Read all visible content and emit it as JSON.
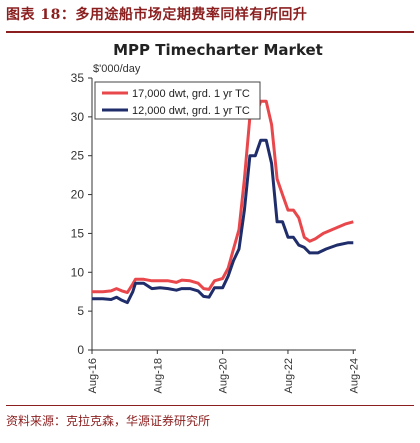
{
  "header": {
    "figure_title": "图表 18：多用途船市场定期费率同样有所回升"
  },
  "footer": {
    "source": "资料来源：克拉克森，华源证券研究所"
  },
  "colors": {
    "series_17000": "#e8474b",
    "series_12000": "#1f2d6b",
    "brand": "#8b1f1f"
  },
  "chart_data": {
    "type": "line",
    "title": "MPP Timecharter Market",
    "ylabel": "$'000/day",
    "xlabel": "",
    "ylim": [
      0,
      35
    ],
    "yticks": [
      0,
      5,
      10,
      15,
      20,
      25,
      30,
      35
    ],
    "xlim": [
      "2016-08",
      "2024-09"
    ],
    "xticks": [
      "Aug-16",
      "Aug-18",
      "Aug-20",
      "Aug-22",
      "Aug-24"
    ],
    "grid": false,
    "legend_position": "top-left",
    "series": [
      {
        "name": "17,000 dwt, grd. 1 yr TC",
        "color": "#e8474b",
        "points": [
          [
            "2016-08",
            7.5
          ],
          [
            "2016-12",
            7.5
          ],
          [
            "2017-03",
            7.6
          ],
          [
            "2017-05",
            7.9
          ],
          [
            "2017-07",
            7.6
          ],
          [
            "2017-09",
            7.4
          ],
          [
            "2017-11",
            8.5
          ],
          [
            "2017-12",
            9.1
          ],
          [
            "2018-03",
            9.1
          ],
          [
            "2018-06",
            8.9
          ],
          [
            "2018-09",
            8.9
          ],
          [
            "2018-12",
            8.9
          ],
          [
            "2019-03",
            8.7
          ],
          [
            "2019-05",
            9.0
          ],
          [
            "2019-08",
            8.9
          ],
          [
            "2019-11",
            8.6
          ],
          [
            "2020-01",
            7.9
          ],
          [
            "2020-03",
            7.8
          ],
          [
            "2020-05",
            8.9
          ],
          [
            "2020-08",
            9.2
          ],
          [
            "2020-10",
            10.5
          ],
          [
            "2020-12",
            13.0
          ],
          [
            "2021-02",
            15.5
          ],
          [
            "2021-04",
            22.0
          ],
          [
            "2021-06",
            30.0
          ],
          [
            "2021-08",
            30.0
          ],
          [
            "2021-10",
            32.0
          ],
          [
            "2021-12",
            32.0
          ],
          [
            "2022-02",
            29.0
          ],
          [
            "2022-04",
            22.0
          ],
          [
            "2022-06",
            20.0
          ],
          [
            "2022-08",
            18.0
          ],
          [
            "2022-10",
            18.0
          ],
          [
            "2022-12",
            17.0
          ],
          [
            "2023-02",
            14.5
          ],
          [
            "2023-04",
            14.0
          ],
          [
            "2023-06",
            14.3
          ],
          [
            "2023-09",
            15.0
          ],
          [
            "2024-01",
            15.6
          ],
          [
            "2024-05",
            16.2
          ],
          [
            "2024-08",
            16.5
          ]
        ]
      },
      {
        "name": "12,000 dwt, grd. 1 yr TC",
        "color": "#1f2d6b",
        "points": [
          [
            "2016-08",
            6.6
          ],
          [
            "2016-12",
            6.6
          ],
          [
            "2017-03",
            6.5
          ],
          [
            "2017-05",
            6.8
          ],
          [
            "2017-07",
            6.4
          ],
          [
            "2017-09",
            6.1
          ],
          [
            "2017-11",
            7.5
          ],
          [
            "2017-12",
            8.6
          ],
          [
            "2018-03",
            8.6
          ],
          [
            "2018-06",
            7.9
          ],
          [
            "2018-09",
            8.0
          ],
          [
            "2018-12",
            7.9
          ],
          [
            "2019-03",
            7.7
          ],
          [
            "2019-05",
            7.9
          ],
          [
            "2019-08",
            7.9
          ],
          [
            "2019-11",
            7.6
          ],
          [
            "2020-01",
            6.9
          ],
          [
            "2020-03",
            6.8
          ],
          [
            "2020-05",
            8.0
          ],
          [
            "2020-08",
            8.0
          ],
          [
            "2020-10",
            9.5
          ],
          [
            "2020-12",
            11.5
          ],
          [
            "2021-02",
            13.0
          ],
          [
            "2021-04",
            18.0
          ],
          [
            "2021-06",
            25.0
          ],
          [
            "2021-08",
            25.0
          ],
          [
            "2021-10",
            27.0
          ],
          [
            "2021-12",
            27.0
          ],
          [
            "2022-02",
            24.0
          ],
          [
            "2022-04",
            16.5
          ],
          [
            "2022-06",
            16.5
          ],
          [
            "2022-08",
            14.5
          ],
          [
            "2022-10",
            14.5
          ],
          [
            "2022-12",
            13.5
          ],
          [
            "2023-02",
            13.2
          ],
          [
            "2023-04",
            12.5
          ],
          [
            "2023-07",
            12.5
          ],
          [
            "2023-10",
            13.0
          ],
          [
            "2024-02",
            13.5
          ],
          [
            "2024-06",
            13.8
          ],
          [
            "2024-08",
            13.8
          ]
        ]
      }
    ]
  }
}
